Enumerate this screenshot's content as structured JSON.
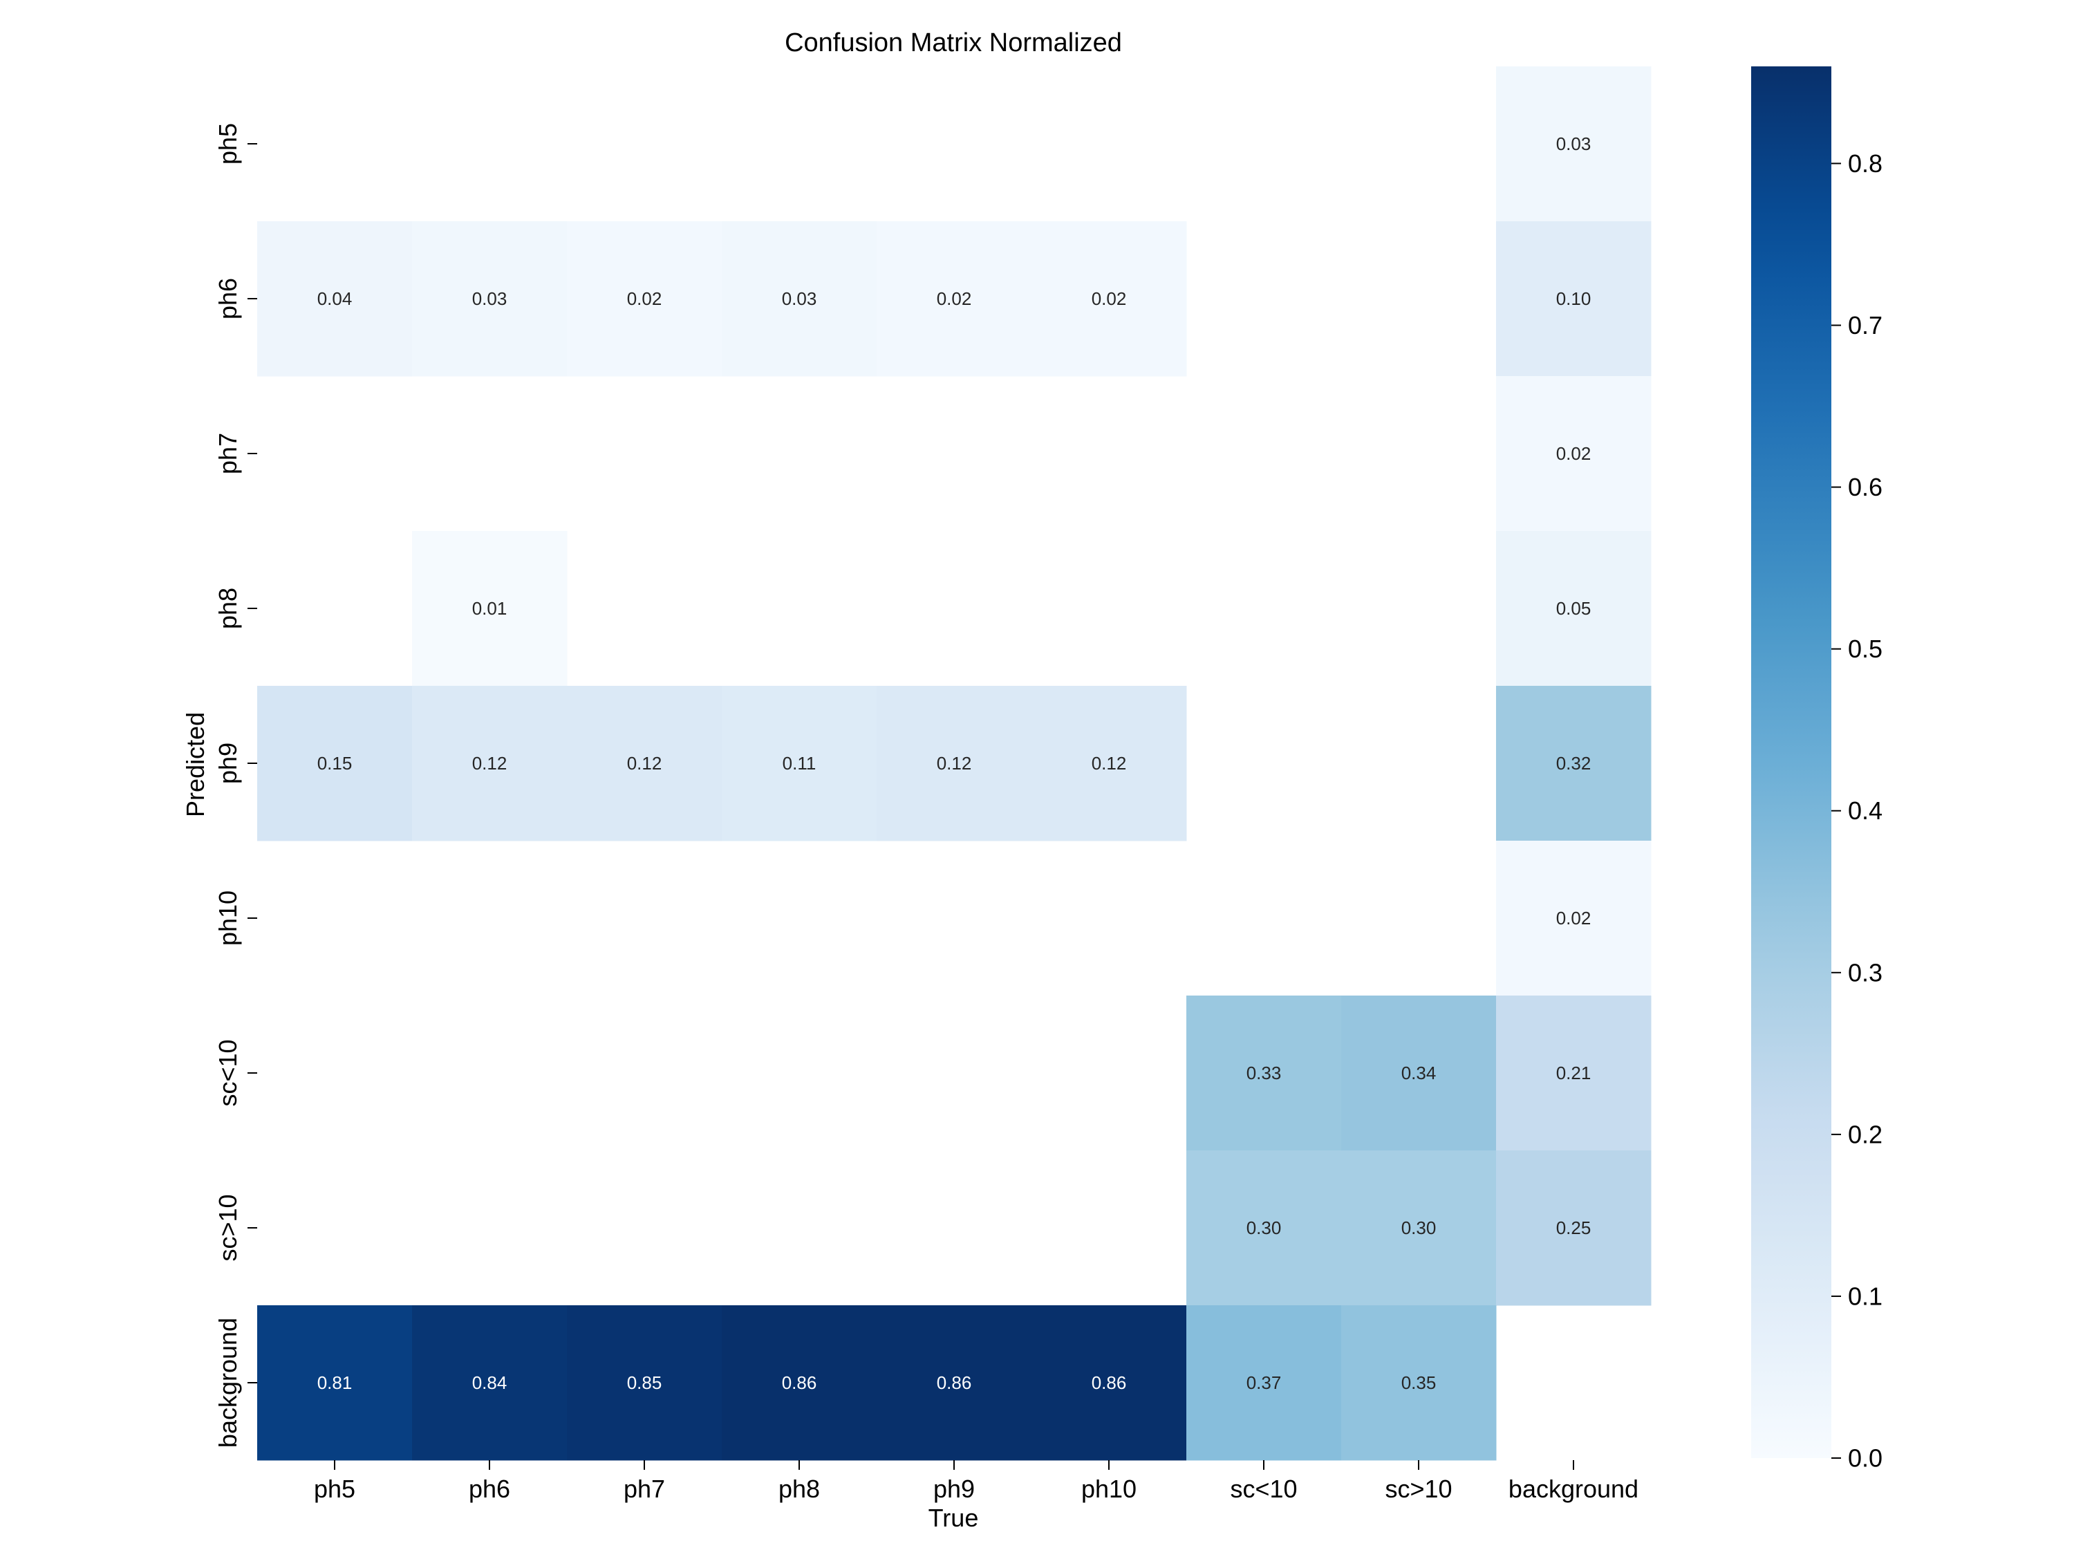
{
  "chart_data": {
    "type": "heatmap",
    "title": "Confusion Matrix Normalized",
    "xlabel": "True",
    "ylabel": "Predicted",
    "x_categories": [
      "ph5",
      "ph6",
      "ph7",
      "ph8",
      "ph9",
      "ph10",
      "sc<10",
      "sc>10",
      "background"
    ],
    "y_categories": [
      "ph5",
      "ph6",
      "ph7",
      "ph8",
      "ph9",
      "ph10",
      "sc<10",
      "sc>10",
      "background"
    ],
    "values": [
      [
        null,
        null,
        null,
        null,
        null,
        null,
        null,
        null,
        0.03
      ],
      [
        0.04,
        0.03,
        0.02,
        0.03,
        0.02,
        0.02,
        null,
        null,
        0.1
      ],
      [
        null,
        null,
        null,
        null,
        null,
        null,
        null,
        null,
        0.02
      ],
      [
        null,
        0.01,
        null,
        null,
        null,
        null,
        null,
        null,
        0.05
      ],
      [
        0.15,
        0.12,
        0.12,
        0.11,
        0.12,
        0.12,
        null,
        null,
        0.32
      ],
      [
        null,
        null,
        null,
        null,
        null,
        null,
        null,
        null,
        0.02
      ],
      [
        null,
        null,
        null,
        null,
        null,
        null,
        0.33,
        0.34,
        0.21
      ],
      [
        null,
        null,
        null,
        null,
        null,
        null,
        0.3,
        0.3,
        0.25
      ],
      [
        0.81,
        0.84,
        0.85,
        0.86,
        0.86,
        0.86,
        0.37,
        0.35,
        null
      ]
    ],
    "colorbar": {
      "min": 0.0,
      "max": 0.86,
      "ticks": [
        0.0,
        0.1,
        0.2,
        0.3,
        0.4,
        0.5,
        0.6,
        0.7,
        0.8
      ],
      "tick_labels": [
        "0.0",
        "0.1",
        "0.2",
        "0.3",
        "0.4",
        "0.5",
        "0.6",
        "0.7",
        "0.8"
      ],
      "colormap": "Blues"
    },
    "grid": false
  }
}
